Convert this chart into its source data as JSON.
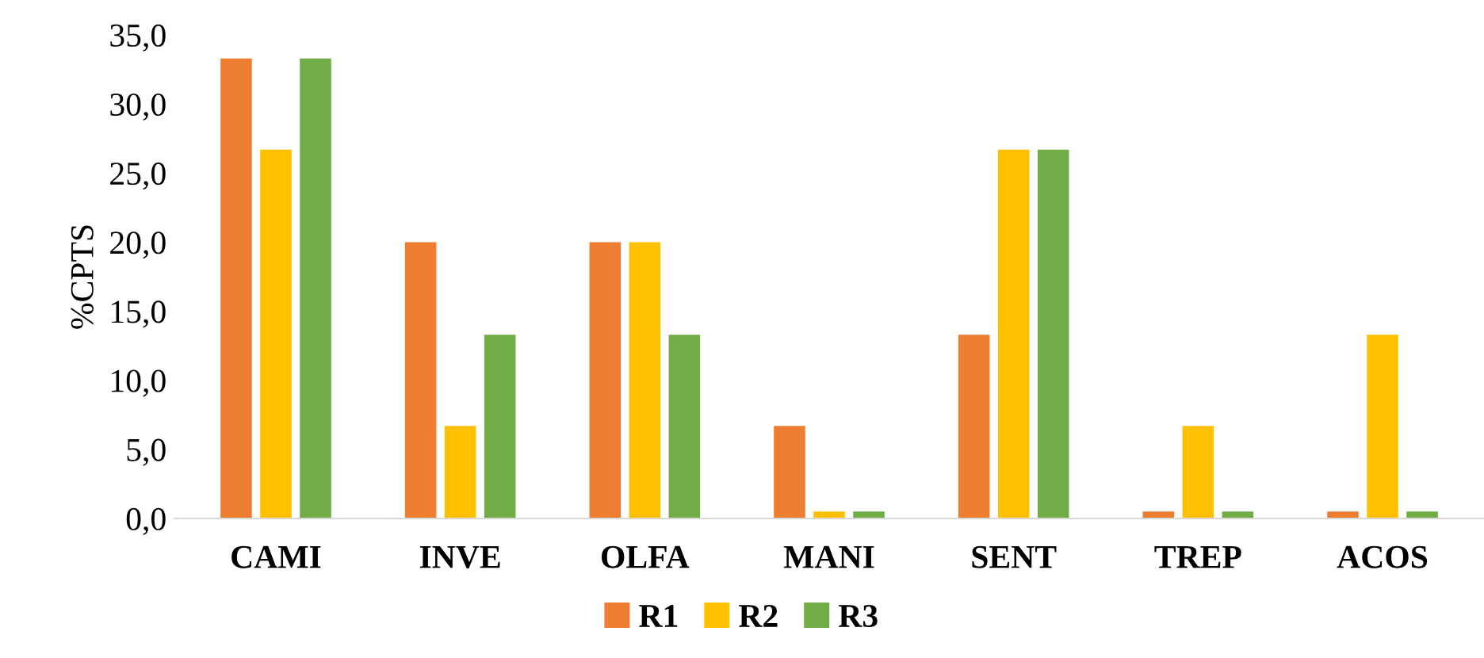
{
  "chart_data": {
    "type": "bar",
    "ylabel": "%CPTS",
    "categories": [
      "CAMI",
      "INVE",
      "OLFA",
      "MANI",
      "SENT",
      "TREP",
      "ACOS"
    ],
    "series": [
      {
        "name": "R1",
        "color": "#ed7d31",
        "values": [
          33.3,
          20.0,
          20.0,
          6.7,
          13.3,
          0.5,
          0.5
        ]
      },
      {
        "name": "R2",
        "color": "#ffc000",
        "values": [
          26.7,
          6.7,
          20.0,
          0.5,
          26.7,
          6.7,
          13.3
        ]
      },
      {
        "name": "R3",
        "color": "#70ad47",
        "values": [
          33.3,
          13.3,
          13.3,
          0.5,
          26.7,
          0.5,
          0.5
        ]
      }
    ],
    "ylim": [
      0,
      35
    ],
    "yticks": [
      {
        "value": 0,
        "label": "0,0"
      },
      {
        "value": 5,
        "label": "5,0"
      },
      {
        "value": 10,
        "label": "10,0"
      },
      {
        "value": 15,
        "label": "15,0"
      },
      {
        "value": 20,
        "label": "20,0"
      },
      {
        "value": 25,
        "label": "25,0"
      },
      {
        "value": 30,
        "label": "30,0"
      },
      {
        "value": 35,
        "label": "35,0"
      }
    ],
    "grid": false,
    "legend": "bottom"
  }
}
